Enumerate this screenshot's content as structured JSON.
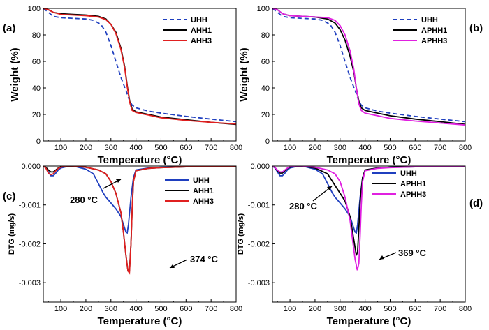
{
  "chart_data": [
    {
      "type": "line",
      "panel_label": "(a)",
      "xlabel": "Temperature (°C)",
      "ylabel": "Weight (%)",
      "xlim": [
        30,
        800
      ],
      "ylim": [
        0,
        100
      ],
      "xticks": [
        100,
        200,
        300,
        400,
        500,
        600,
        700,
        800
      ],
      "yticks": [
        0,
        20,
        40,
        60,
        80,
        100
      ],
      "legend_position": "top-right",
      "series": [
        {
          "name": "UHH",
          "color": "#1f3fbf",
          "dash": true,
          "x": [
            30,
            50,
            70,
            100,
            150,
            200,
            230,
            260,
            280,
            300,
            320,
            340,
            360,
            375,
            385,
            400,
            450,
            500,
            600,
            700,
            800
          ],
          "y": [
            100,
            97,
            94,
            93,
            92.5,
            92,
            91,
            88,
            82,
            72,
            60,
            48,
            38,
            30,
            27,
            25,
            22.5,
            21,
            18.5,
            16.5,
            14.5
          ]
        },
        {
          "name": "AHH1",
          "color": "#000000",
          "dash": false,
          "x": [
            30,
            50,
            70,
            100,
            150,
            200,
            250,
            280,
            300,
            320,
            340,
            355,
            365,
            375,
            385,
            400,
            450,
            500,
            600,
            700,
            800
          ],
          "y": [
            100,
            99,
            97,
            96,
            95.5,
            95,
            94,
            92,
            88,
            82,
            70,
            56,
            42,
            30,
            24,
            22,
            20,
            18,
            16,
            14,
            12.5
          ]
        },
        {
          "name": "AHH3",
          "color": "#e02020",
          "dash": false,
          "x": [
            30,
            50,
            70,
            100,
            150,
            200,
            250,
            280,
            300,
            320,
            340,
            355,
            365,
            375,
            385,
            400,
            450,
            500,
            600,
            700,
            800
          ],
          "y": [
            100,
            99,
            97,
            95.5,
            95,
            94.5,
            93.5,
            91.5,
            88,
            81,
            69,
            55,
            41,
            29,
            23,
            21.5,
            19.5,
            17.5,
            15.5,
            14,
            12.8
          ]
        }
      ]
    },
    {
      "type": "line",
      "panel_label": "(b)",
      "xlabel": "Temperature (°C)",
      "ylabel": "Weight (%)",
      "xlim": [
        30,
        800
      ],
      "ylim": [
        0,
        100
      ],
      "xticks": [
        100,
        200,
        300,
        400,
        500,
        600,
        700,
        800
      ],
      "yticks": [
        0,
        20,
        40,
        60,
        80,
        100
      ],
      "legend_position": "top-right",
      "series": [
        {
          "name": "UHH",
          "color": "#1f3fbf",
          "dash": true,
          "x": [
            30,
            50,
            70,
            100,
            150,
            200,
            230,
            260,
            280,
            300,
            320,
            340,
            360,
            375,
            385,
            400,
            450,
            500,
            600,
            700,
            800
          ],
          "y": [
            100,
            97,
            94,
            93,
            92.5,
            92,
            91,
            88,
            82,
            72,
            60,
            48,
            38,
            30,
            27,
            25,
            22.5,
            21,
            18.5,
            16.5,
            14.5
          ]
        },
        {
          "name": "APHH1",
          "color": "#000000",
          "dash": false,
          "x": [
            30,
            50,
            70,
            100,
            150,
            200,
            250,
            280,
            300,
            320,
            340,
            355,
            365,
            375,
            385,
            400,
            450,
            500,
            600,
            700,
            800
          ],
          "y": [
            100,
            99,
            96,
            94.5,
            94,
            93.5,
            92,
            89,
            84,
            76,
            64,
            52,
            40,
            30,
            25,
            23,
            21,
            19,
            16.5,
            14.5,
            12.5
          ]
        },
        {
          "name": "APHH3",
          "color": "#e020e0",
          "dash": false,
          "x": [
            30,
            50,
            70,
            100,
            150,
            200,
            250,
            280,
            300,
            320,
            340,
            355,
            365,
            375,
            385,
            400,
            450,
            500,
            600,
            700,
            800
          ],
          "y": [
            100,
            99,
            96,
            94.5,
            94,
            93.5,
            93,
            91,
            87,
            80,
            68,
            54,
            40,
            28,
            23,
            21,
            19,
            17,
            15,
            13.5,
            12
          ]
        }
      ]
    },
    {
      "type": "line",
      "panel_label": "(c)",
      "xlabel": "Temperature (°C)",
      "ylabel": "DTG (mg/s)",
      "xlim": [
        30,
        800
      ],
      "ylim": [
        -0.0035,
        0
      ],
      "xticks": [
        100,
        200,
        300,
        400,
        500,
        600,
        700,
        800
      ],
      "yticks": [
        0,
        -0.001,
        -0.002,
        -0.003
      ],
      "ytick_labels": [
        "0.000",
        "-0.001",
        "-0.002",
        "-0.003"
      ],
      "legend_position": "right",
      "annotations": [
        "280 °C",
        "374 °C"
      ],
      "series": [
        {
          "name": "UHH",
          "color": "#1f3fbf",
          "dash": false,
          "x": [
            30,
            40,
            50,
            60,
            70,
            80,
            90,
            100,
            120,
            150,
            200,
            230,
            250,
            270,
            280,
            300,
            320,
            340,
            350,
            360,
            365,
            370,
            380,
            390,
            400,
            450,
            500,
            600,
            700,
            800
          ],
          "y": [
            0,
            -5e-05,
            -0.00015,
            -0.00025,
            -0.00025,
            -0.00018,
            -0.0001,
            -5e-05,
            -2e-05,
            0,
            -8e-05,
            -0.0002,
            -0.00045,
            -0.0007,
            -0.0008,
            -0.00095,
            -0.0011,
            -0.0013,
            -0.0015,
            -0.0017,
            -0.00172,
            -0.0015,
            -0.0008,
            -0.0003,
            -0.0001,
            -5e-05,
            -3e-05,
            -2e-05,
            -1e-05,
            0
          ]
        },
        {
          "name": "AHH1",
          "color": "#000000",
          "dash": false,
          "x": [
            30,
            40,
            50,
            60,
            70,
            80,
            90,
            100,
            120,
            150,
            200,
            250,
            280,
            300,
            320,
            340,
            350,
            360,
            368,
            374,
            380,
            385,
            390,
            400,
            450,
            500,
            600,
            700,
            800
          ],
          "y": [
            0,
            -3e-05,
            -0.0001,
            -0.00015,
            -0.00015,
            -0.0001,
            -5e-05,
            -2e-05,
            0,
            0,
            -3e-05,
            -0.0001,
            -0.0002,
            -0.0004,
            -0.0007,
            -0.0012,
            -0.0017,
            -0.0023,
            -0.0027,
            -0.0027,
            -0.002,
            -0.0011,
            -0.0004,
            -0.00012,
            -6e-05,
            -4e-05,
            -2e-05,
            -1e-05,
            0
          ]
        },
        {
          "name": "AHH3",
          "color": "#e02020",
          "dash": false,
          "x": [
            30,
            40,
            50,
            60,
            70,
            80,
            90,
            100,
            120,
            150,
            200,
            250,
            280,
            300,
            320,
            340,
            350,
            360,
            368,
            374,
            380,
            385,
            390,
            400,
            450,
            500,
            600,
            700,
            800
          ],
          "y": [
            0,
            -5e-05,
            -0.00018,
            -0.00022,
            -0.0002,
            -0.00012,
            -6e-05,
            -3e-05,
            0,
            0,
            -3e-05,
            -0.0001,
            -0.0002,
            -0.0004,
            -0.0007,
            -0.0012,
            -0.0017,
            -0.0023,
            -0.0027,
            -0.00275,
            -0.002,
            -0.0011,
            -0.0004,
            -0.00012,
            -6e-05,
            -4e-05,
            -2e-05,
            -1e-05,
            0
          ]
        }
      ]
    },
    {
      "type": "line",
      "panel_label": "(d)",
      "xlabel": "Temperature (°C)",
      "ylabel": "DTG (mg/s)",
      "xlim": [
        30,
        800
      ],
      "ylim": [
        -0.0035,
        0
      ],
      "xticks": [
        100,
        200,
        300,
        400,
        500,
        600,
        700,
        800
      ],
      "yticks": [
        0,
        -0.001,
        -0.002,
        -0.003
      ],
      "ytick_labels": [
        "0.000",
        "-0.001",
        "-0.002",
        "-0.003"
      ],
      "legend_position": "right",
      "annotations": [
        "280 °C",
        "369 °C"
      ],
      "series": [
        {
          "name": "UHH",
          "color": "#1f3fbf",
          "dash": false,
          "x": [
            30,
            40,
            50,
            60,
            70,
            80,
            90,
            100,
            120,
            150,
            200,
            230,
            250,
            270,
            280,
            300,
            320,
            340,
            350,
            360,
            365,
            370,
            380,
            390,
            400,
            450,
            500,
            600,
            700,
            800
          ],
          "y": [
            0,
            -5e-05,
            -0.00015,
            -0.00025,
            -0.00025,
            -0.00018,
            -0.0001,
            -5e-05,
            -2e-05,
            0,
            -8e-05,
            -0.0002,
            -0.00045,
            -0.0007,
            -0.0008,
            -0.00095,
            -0.0011,
            -0.0013,
            -0.0015,
            -0.0017,
            -0.00172,
            -0.0015,
            -0.0008,
            -0.0003,
            -0.0001,
            -5e-05,
            -3e-05,
            -2e-05,
            -1e-05,
            0
          ]
        },
        {
          "name": "APHH1",
          "color": "#000000",
          "dash": false,
          "x": [
            30,
            40,
            50,
            60,
            70,
            80,
            90,
            100,
            120,
            150,
            200,
            250,
            280,
            300,
            320,
            340,
            350,
            360,
            365,
            370,
            375,
            380,
            390,
            400,
            450,
            500,
            600,
            700,
            800
          ],
          "y": [
            0,
            -4e-05,
            -0.00012,
            -0.00018,
            -0.00018,
            -0.00012,
            -6e-05,
            -3e-05,
            0,
            0,
            -5e-05,
            -0.0002,
            -0.0005,
            -0.0007,
            -0.0009,
            -0.0013,
            -0.0017,
            -0.0021,
            -0.0023,
            -0.0022,
            -0.0016,
            -0.0009,
            -0.0003,
            -0.0001,
            -5e-05,
            -3e-05,
            -2e-05,
            -1e-05,
            0
          ]
        },
        {
          "name": "APHH3",
          "color": "#e020e0",
          "dash": false,
          "x": [
            30,
            40,
            50,
            60,
            70,
            80,
            90,
            100,
            120,
            150,
            200,
            250,
            280,
            300,
            320,
            340,
            350,
            360,
            369,
            375,
            380,
            385,
            390,
            400,
            450,
            500,
            600,
            700,
            800
          ],
          "y": [
            0,
            -4e-05,
            -0.0001,
            -0.00015,
            -0.00015,
            -0.0001,
            -5e-05,
            -2e-05,
            0,
            0,
            -3e-05,
            -0.0001,
            -0.0002,
            -0.0004,
            -0.0008,
            -0.0014,
            -0.0019,
            -0.0024,
            -0.00268,
            -0.0025,
            -0.0018,
            -0.001,
            -0.0004,
            -0.00012,
            -6e-05,
            -4e-05,
            -2e-05,
            -1e-05,
            0
          ]
        }
      ]
    }
  ]
}
